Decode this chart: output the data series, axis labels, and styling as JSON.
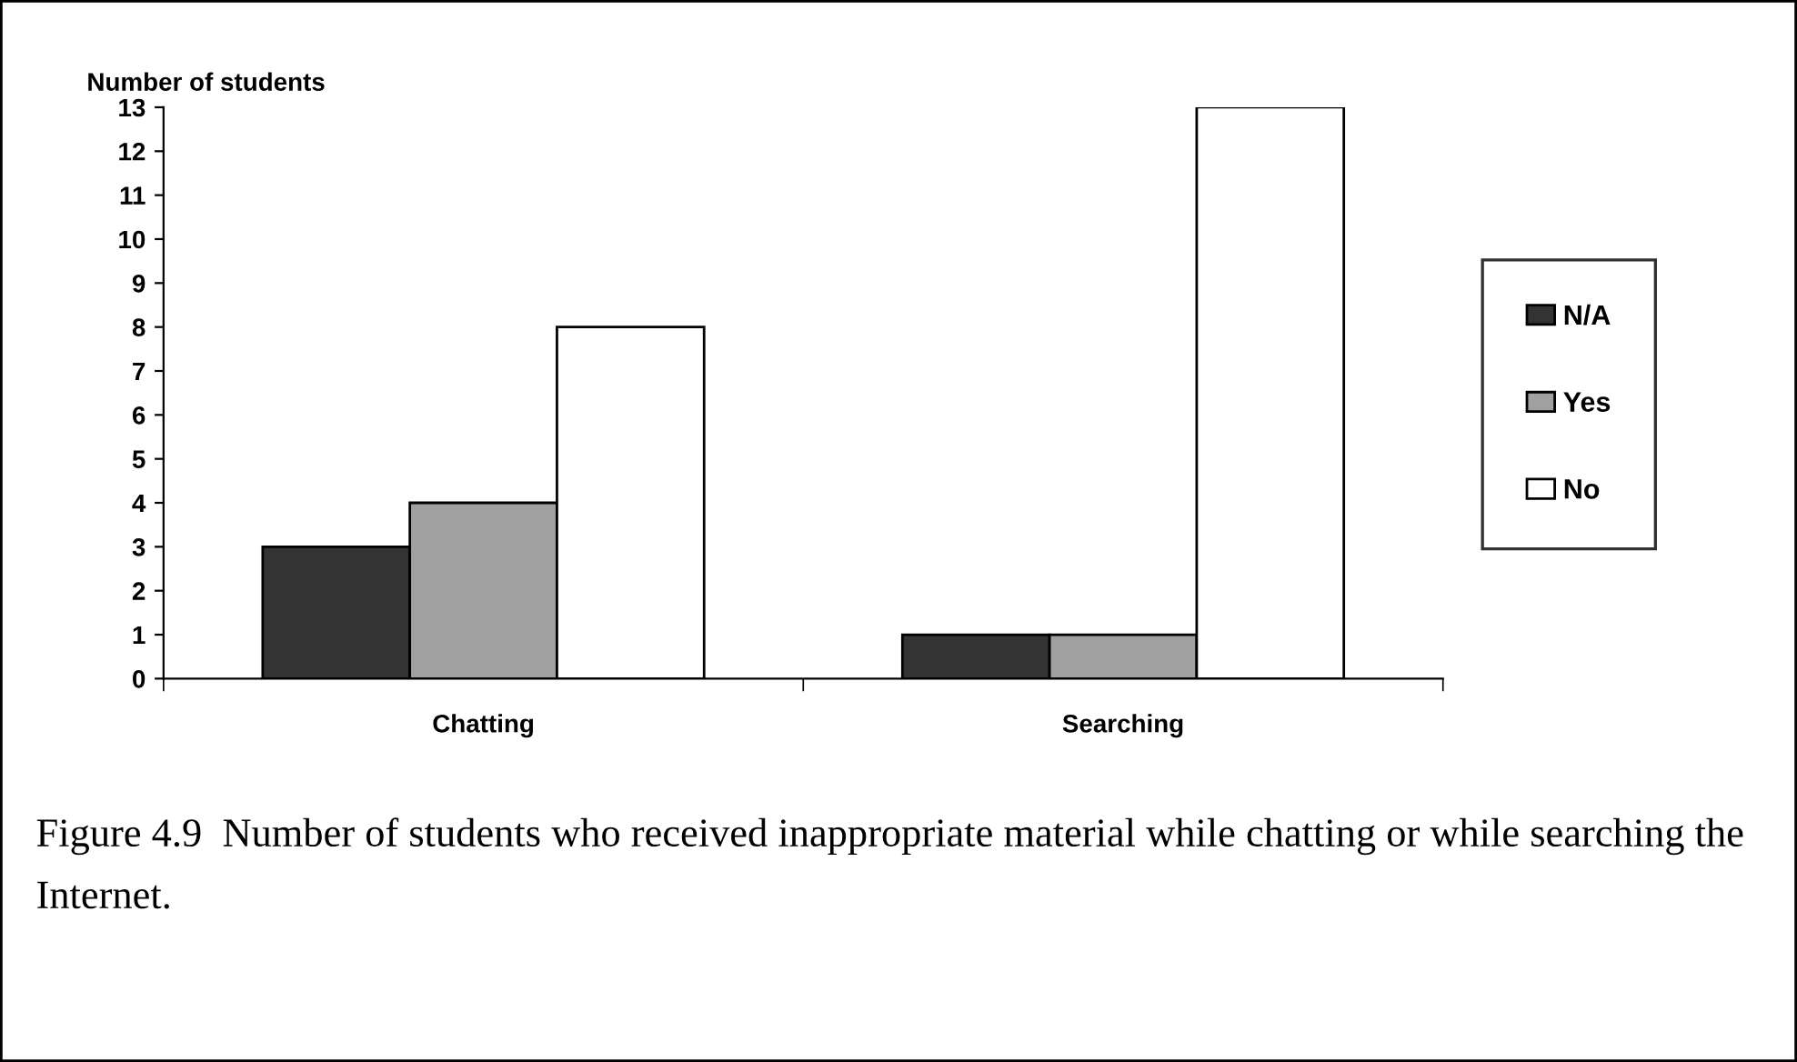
{
  "chart_data": {
    "type": "bar",
    "ylabel": "Number of students",
    "categories": [
      "Chatting",
      "Searching"
    ],
    "series": [
      {
        "name": "N/A",
        "color": "#333333",
        "values": [
          3,
          1
        ]
      },
      {
        "name": "Yes",
        "color": "#a0a0a0",
        "values": [
          4,
          1
        ]
      },
      {
        "name": "No",
        "color": "#ffffff",
        "values": [
          8,
          13
        ]
      }
    ],
    "ylim": [
      0,
      13
    ],
    "yticks": [
      0,
      1,
      2,
      3,
      4,
      5,
      6,
      7,
      8,
      9,
      10,
      11,
      12,
      13
    ],
    "grid": false,
    "legend": "right",
    "annotations": [
      "Figure 4.9  Number of students who received inappropriate material while chatting or while searching the Internet."
    ]
  }
}
